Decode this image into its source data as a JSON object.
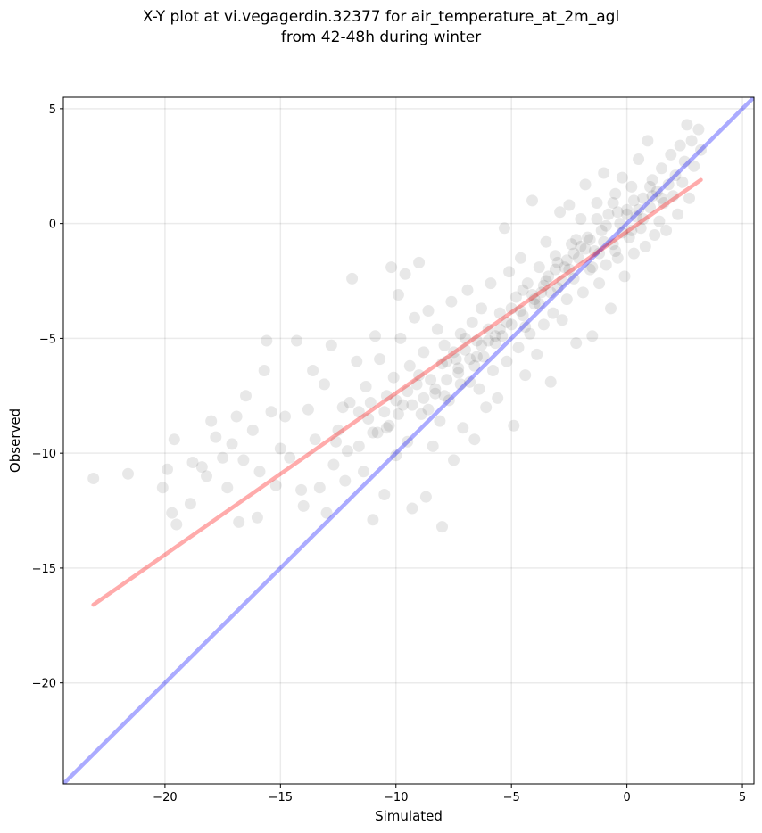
{
  "chart_data": {
    "type": "scatter",
    "title_line1": "X-Y plot at vi.vegagerdin.32377 for air_temperature_at_2m_agl",
    "title_line2": "from 42-48h during winter",
    "xlabel": "Simulated",
    "ylabel": "Observed",
    "xlim": [
      -24.4,
      5.5
    ],
    "ylim": [
      -24.4,
      5.5
    ],
    "xticks": [
      -20,
      -15,
      -10,
      -5,
      0,
      5
    ],
    "yticks": [
      -20,
      -15,
      -10,
      -5,
      0,
      5
    ],
    "xtick_labels": [
      "−20",
      "−15",
      "−10",
      "−5",
      "0",
      "5"
    ],
    "ytick_labels": [
      "−20",
      "−15",
      "−10",
      "−5",
      "0",
      "5"
    ],
    "grid": true,
    "lines": [
      {
        "role": "one-to-one",
        "color": "#0000ff",
        "x": [
          -24.4,
          5.5
        ],
        "y": [
          -24.4,
          5.5
        ]
      },
      {
        "role": "linear-fit",
        "color": "#ff0000",
        "x": [
          -23.1,
          3.2
        ],
        "y": [
          -16.6,
          1.9
        ]
      }
    ],
    "point_color": "#000000",
    "point_alpha": 0.09,
    "points": [
      [
        -23.1,
        -11.1
      ],
      [
        -21.6,
        -10.9
      ],
      [
        -20.1,
        -11.5
      ],
      [
        -19.9,
        -10.7
      ],
      [
        -19.7,
        -12.6
      ],
      [
        -19.5,
        -13.1
      ],
      [
        -19.6,
        -9.4
      ],
      [
        -18.8,
        -10.4
      ],
      [
        -18.9,
        -12.2
      ],
      [
        -18.4,
        -10.6
      ],
      [
        -18.2,
        -11.0
      ],
      [
        -18.0,
        -8.6
      ],
      [
        -17.8,
        -9.3
      ],
      [
        -17.5,
        -10.2
      ],
      [
        -17.3,
        -11.5
      ],
      [
        -17.1,
        -9.6
      ],
      [
        -16.9,
        -8.4
      ],
      [
        -16.8,
        -13.0
      ],
      [
        -16.6,
        -10.3
      ],
      [
        -16.5,
        -7.5
      ],
      [
        -16.2,
        -9.0
      ],
      [
        -16.0,
        -12.8
      ],
      [
        -15.9,
        -10.8
      ],
      [
        -15.7,
        -6.4
      ],
      [
        -15.6,
        -5.1
      ],
      [
        -15.4,
        -8.2
      ],
      [
        -15.2,
        -11.4
      ],
      [
        -15.0,
        -9.8
      ],
      [
        -14.8,
        -8.4
      ],
      [
        -14.6,
        -10.2
      ],
      [
        -14.3,
        -5.1
      ],
      [
        -14.1,
        -11.6
      ],
      [
        -14.0,
        -12.3
      ],
      [
        -13.8,
        -8.1
      ],
      [
        -13.6,
        -6.4
      ],
      [
        -13.5,
        -9.4
      ],
      [
        -13.3,
        -11.5
      ],
      [
        -13.1,
        -7.0
      ],
      [
        -13.0,
        -12.6
      ],
      [
        -12.8,
        -5.3
      ],
      [
        -12.7,
        -10.5
      ],
      [
        -12.5,
        -9.0
      ],
      [
        -12.3,
        -8.0
      ],
      [
        -12.2,
        -11.2
      ],
      [
        -12.0,
        -7.8
      ],
      [
        -11.9,
        -2.4
      ],
      [
        -11.7,
        -6.0
      ],
      [
        -11.6,
        -9.7
      ],
      [
        -11.4,
        -10.8
      ],
      [
        -11.3,
        -7.1
      ],
      [
        -11.2,
        -8.5
      ],
      [
        -11.0,
        -12.9
      ],
      [
        -10.9,
        -4.9
      ],
      [
        -10.8,
        -9.1
      ],
      [
        -10.7,
        -5.9
      ],
      [
        -10.5,
        -11.8
      ],
      [
        -10.4,
        -7.5
      ],
      [
        -10.3,
        -8.8
      ],
      [
        -10.2,
        -1.9
      ],
      [
        -10.1,
        -6.7
      ],
      [
        -10.0,
        -10.1
      ],
      [
        -9.9,
        -3.1
      ],
      [
        -9.8,
        -5.0
      ],
      [
        -9.7,
        -7.9
      ],
      [
        -9.6,
        -2.2
      ],
      [
        -9.5,
        -9.5
      ],
      [
        -9.4,
        -6.2
      ],
      [
        -9.3,
        -12.4
      ],
      [
        -9.2,
        -4.1
      ],
      [
        -9.1,
        -7.0
      ],
      [
        -9.0,
        -1.7
      ],
      [
        -8.9,
        -8.3
      ],
      [
        -8.8,
        -5.6
      ],
      [
        -8.7,
        -11.9
      ],
      [
        -8.6,
        -3.8
      ],
      [
        -8.5,
        -6.8
      ],
      [
        -8.4,
        -9.7
      ],
      [
        -8.3,
        -7.4
      ],
      [
        -8.2,
        -4.6
      ],
      [
        -8.1,
        -8.6
      ],
      [
        -8.0,
        -13.2
      ],
      [
        -7.9,
        -5.3
      ],
      [
        -7.8,
        -6.0
      ],
      [
        -7.7,
        -7.7
      ],
      [
        -7.6,
        -3.4
      ],
      [
        -7.5,
        -10.3
      ],
      [
        -7.4,
        -5.9
      ],
      [
        -7.3,
        -6.5
      ],
      [
        -7.2,
        -4.8
      ],
      [
        -7.1,
        -8.9
      ],
      [
        -7.0,
        -5.5
      ],
      [
        -6.9,
        -2.9
      ],
      [
        -6.8,
        -6.9
      ],
      [
        -6.7,
        -4.3
      ],
      [
        -6.6,
        -9.4
      ],
      [
        -6.5,
        -5.1
      ],
      [
        -6.4,
        -7.2
      ],
      [
        -6.3,
        -3.7
      ],
      [
        -6.2,
        -5.8
      ],
      [
        -6.1,
        -8.0
      ],
      [
        -6.0,
        -4.6
      ],
      [
        -5.9,
        -2.6
      ],
      [
        -5.8,
        -6.4
      ],
      [
        -5.7,
        -5.2
      ],
      [
        -5.6,
        -7.6
      ],
      [
        -5.5,
        -3.9
      ],
      [
        -5.4,
        -4.9
      ],
      [
        -5.3,
        -0.2
      ],
      [
        -5.2,
        -6.0
      ],
      [
        -5.1,
        -2.1
      ],
      [
        -5.0,
        -4.4
      ],
      [
        -4.9,
        -8.8
      ],
      [
        -4.8,
        -3.2
      ],
      [
        -4.7,
        -5.4
      ],
      [
        -4.6,
        -1.5
      ],
      [
        -4.5,
        -4.0
      ],
      [
        -4.4,
        -6.6
      ],
      [
        -4.3,
        -2.6
      ],
      [
        -4.2,
        -4.8
      ],
      [
        -4.1,
        1.0
      ],
      [
        -4.0,
        -3.5
      ],
      [
        -3.9,
        -5.7
      ],
      [
        -3.8,
        -1.9
      ],
      [
        -3.7,
        -3.0
      ],
      [
        -3.6,
        -4.4
      ],
      [
        -3.5,
        -0.8
      ],
      [
        -3.4,
        -2.3
      ],
      [
        -3.3,
        -6.9
      ],
      [
        -3.2,
        -3.9
      ],
      [
        -3.1,
        -1.4
      ],
      [
        -3.0,
        -2.8
      ],
      [
        -2.9,
        0.5
      ],
      [
        -2.8,
        -4.2
      ],
      [
        -2.7,
        -1.9
      ],
      [
        -2.6,
        -3.3
      ],
      [
        -2.5,
        0.8
      ],
      [
        -2.4,
        -0.9
      ],
      [
        -2.3,
        -2.4
      ],
      [
        -2.2,
        -5.2
      ],
      [
        -2.1,
        -1.5
      ],
      [
        -2.0,
        0.2
      ],
      [
        -1.9,
        -3.0
      ],
      [
        -1.8,
        1.7
      ],
      [
        -1.7,
        -0.6
      ],
      [
        -1.6,
        -2.0
      ],
      [
        -1.5,
        -4.9
      ],
      [
        -1.4,
        -1.2
      ],
      [
        -1.3,
        0.9
      ],
      [
        -1.2,
        -2.6
      ],
      [
        -1.1,
        -0.3
      ],
      [
        -1.0,
        2.2
      ],
      [
        -0.9,
        -1.8
      ],
      [
        -0.8,
        0.4
      ],
      [
        -0.7,
        -3.7
      ],
      [
        -0.6,
        -0.9
      ],
      [
        -0.5,
        1.3
      ],
      [
        -0.4,
        -1.5
      ],
      [
        -0.3,
        0.0
      ],
      [
        -0.2,
        2.0
      ],
      [
        -0.1,
        -2.3
      ],
      [
        0.0,
        0.6
      ],
      [
        0.1,
        -0.6
      ],
      [
        0.2,
        1.6
      ],
      [
        0.3,
        -1.3
      ],
      [
        0.4,
        0.3
      ],
      [
        0.5,
        2.8
      ],
      [
        0.6,
        -0.2
      ],
      [
        0.7,
        1.1
      ],
      [
        0.8,
        -1.0
      ],
      [
        0.9,
        3.6
      ],
      [
        1.0,
        0.7
      ],
      [
        1.1,
        1.9
      ],
      [
        1.2,
        -0.5
      ],
      [
        1.3,
        1.4
      ],
      [
        1.4,
        0.1
      ],
      [
        1.5,
        2.4
      ],
      [
        1.6,
        0.9
      ],
      [
        1.7,
        -0.3
      ],
      [
        1.8,
        1.7
      ],
      [
        1.9,
        3.0
      ],
      [
        2.0,
        1.2
      ],
      [
        2.1,
        2.1
      ],
      [
        2.2,
        0.4
      ],
      [
        2.3,
        3.4
      ],
      [
        2.4,
        1.8
      ],
      [
        2.5,
        2.7
      ],
      [
        2.6,
        4.3
      ],
      [
        2.7,
        1.1
      ],
      [
        2.8,
        3.6
      ],
      [
        2.9,
        2.5
      ],
      [
        3.1,
        4.1
      ],
      [
        3.2,
        3.2
      ],
      [
        -1.3,
        0.2
      ],
      [
        -1.0,
        -0.8
      ],
      [
        -0.6,
        0.9
      ],
      [
        -0.2,
        -0.4
      ],
      [
        0.3,
        1.0
      ],
      [
        0.7,
        0.2
      ],
      [
        1.1,
        1.2
      ],
      [
        -1.8,
        -1.1
      ],
      [
        -2.2,
        -0.7
      ],
      [
        -2.6,
        -1.6
      ],
      [
        -3.1,
        -2.0
      ],
      [
        -3.6,
        -2.7
      ],
      [
        -4.1,
        -3.1
      ],
      [
        -4.6,
        -3.8
      ],
      [
        -5.2,
        -4.3
      ],
      [
        -5.7,
        -4.9
      ],
      [
        -6.3,
        -5.3
      ],
      [
        -6.8,
        -5.9
      ],
      [
        -7.3,
        -6.3
      ],
      [
        -7.8,
        -6.8
      ],
      [
        -8.3,
        -7.2
      ],
      [
        -8.8,
        -7.6
      ],
      [
        -9.3,
        -7.9
      ],
      [
        -9.9,
        -8.3
      ],
      [
        -10.4,
        -8.9
      ],
      [
        -11.0,
        -9.1
      ],
      [
        -11.6,
        -8.2
      ],
      [
        -12.1,
        -9.9
      ],
      [
        -12.6,
        -9.5
      ],
      [
        -7.0,
        -5.0
      ],
      [
        -7.5,
        -5.6
      ],
      [
        -8.0,
        -6.1
      ],
      [
        -6.5,
        -5.8
      ],
      [
        -6.0,
        -5.1
      ],
      [
        -9.0,
        -6.6
      ],
      [
        -9.5,
        -7.3
      ],
      [
        -10.0,
        -7.7
      ],
      [
        -10.5,
        -8.2
      ],
      [
        -11.1,
        -7.8
      ],
      [
        -1.5,
        -1.9
      ],
      [
        -0.5,
        -1.2
      ],
      [
        0.5,
        0.6
      ],
      [
        1.0,
        1.6
      ],
      [
        1.5,
        1.1
      ],
      [
        -2.0,
        -1.0
      ],
      [
        -2.5,
        -2.0
      ],
      [
        -3.0,
        -1.7
      ],
      [
        -3.5,
        -2.5
      ],
      [
        -4.0,
        -3.3
      ],
      [
        -4.5,
        -2.9
      ],
      [
        -5.0,
        -3.7
      ],
      [
        -5.5,
        -4.6
      ],
      [
        -0.9,
        -0.1
      ],
      [
        -0.4,
        0.5
      ],
      [
        0.0,
        0.4
      ],
      [
        0.2,
        -0.3
      ],
      [
        -1.2,
        -1.3
      ],
      [
        -1.6,
        -0.7
      ],
      [
        -2.3,
        -1.3
      ],
      [
        -6.6,
        -6.2
      ],
      [
        -7.2,
        -7.0
      ],
      [
        -7.9,
        -7.5
      ],
      [
        -8.6,
        -8.1
      ],
      [
        -4.4,
        -4.5
      ],
      [
        -3.8,
        -3.5
      ],
      [
        -3.3,
        -3.0
      ],
      [
        -2.8,
        -2.5
      ]
    ]
  }
}
